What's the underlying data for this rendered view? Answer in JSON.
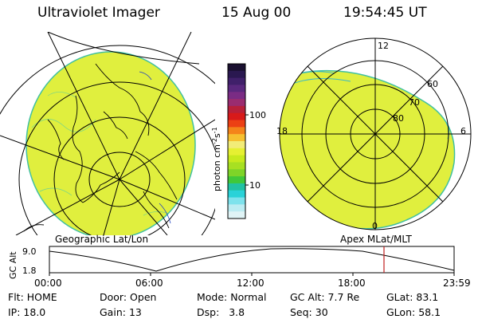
{
  "header": {
    "instrument": "Ultraviolet Imager",
    "date": "15 Aug 00",
    "time": "19:54:45 UT"
  },
  "colorbar": {
    "unit_label": "photon cm",
    "unit_exp1": "-2",
    "unit_s": "s",
    "unit_exp2": "-1",
    "ticks": [
      "100",
      "10"
    ],
    "colors": [
      "#1a1030",
      "#2a1850",
      "#40206a",
      "#5a287e",
      "#7a2c84",
      "#9a2c70",
      "#b8203a",
      "#d81a1a",
      "#ec4014",
      "#f4841a",
      "#f6c030",
      "#f2ec78",
      "#e6f032",
      "#c8ea1e",
      "#a8e022",
      "#7ed428",
      "#40c83a",
      "#22c2a4",
      "#2ad2d8",
      "#7ee2ec",
      "#bcecf2",
      "#e0f4f6"
    ]
  },
  "left_panel": {
    "caption": "Geographic Lat/Lon",
    "fill_color": "#e0ef3e"
  },
  "right_panel": {
    "caption": "Apex MLat/MLT",
    "fill_color": "#e0ef3e",
    "mlt_labels": {
      "top": "12",
      "left": "18",
      "right": "6",
      "bottom": "0"
    },
    "lat_labels": [
      "60",
      "70",
      "80"
    ]
  },
  "timeline": {
    "y_axis_label": "GC Alt",
    "y_ticks": [
      "9.0",
      "1.8"
    ],
    "x_ticks": [
      "00:00",
      "06:00",
      "12:00",
      "18:00",
      "23:59"
    ],
    "current_time_marker_color": "#c02020"
  },
  "info": {
    "flt_label": "Flt:",
    "flt_value": "HOME",
    "ip_label": "IP:",
    "ip_value": "18.0",
    "door_label": "Door:",
    "door_value": "Open",
    "gain_label": "Gain:",
    "gain_value": "13",
    "mode_label": "Mode:",
    "mode_value": "Normal",
    "dsp_label": "Dsp:",
    "dsp_value": "3.8",
    "gcalt_label": "GC Alt:",
    "gcalt_value": "7.7 Re",
    "seq_label": "Seq:",
    "seq_value": "30",
    "glat_label": "GLat:",
    "glat_value": "83.1",
    "glon_label": "GLon:",
    "glon_value": "58.1"
  }
}
